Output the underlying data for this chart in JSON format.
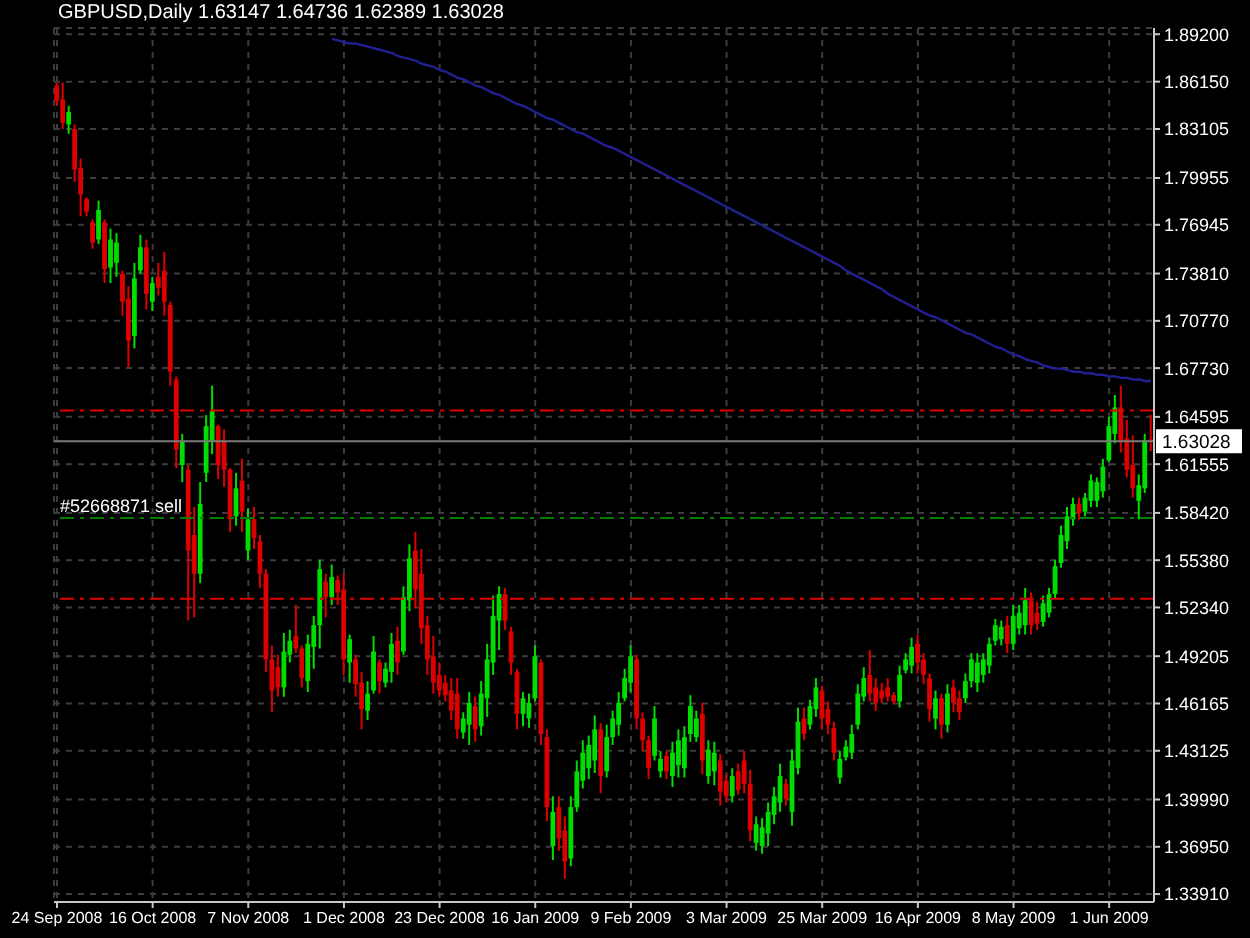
{
  "chart_data": {
    "type": "candlestick",
    "title": "GBPUSD,Daily 1.63147 1.64736 1.62389 1.63028",
    "categories": [
      "24 Sep 2008",
      null,
      null,
      null,
      null,
      null,
      null,
      null,
      null,
      null,
      null,
      null,
      null,
      null,
      null,
      null,
      "16 Oct 2008",
      null,
      null,
      null,
      null,
      null,
      null,
      null,
      null,
      null,
      null,
      null,
      null,
      null,
      null,
      null,
      "7 Nov 2008",
      null,
      null,
      null,
      null,
      null,
      null,
      null,
      null,
      null,
      null,
      null,
      null,
      null,
      null,
      null,
      "1 Dec 2008",
      null,
      null,
      null,
      null,
      null,
      null,
      null,
      null,
      null,
      null,
      null,
      null,
      null,
      null,
      null,
      "23 Dec 2008",
      null,
      null,
      null,
      null,
      null,
      null,
      null,
      null,
      null,
      null,
      null,
      null,
      null,
      null,
      null,
      "16 Jan 2009",
      null,
      null,
      null,
      null,
      null,
      null,
      null,
      null,
      null,
      null,
      null,
      null,
      null,
      null,
      null,
      "9 Feb 2009",
      null,
      null,
      null,
      null,
      null,
      null,
      null,
      null,
      null,
      null,
      null,
      null,
      null,
      null,
      null,
      "3 Mar 2009",
      null,
      null,
      null,
      null,
      null,
      null,
      null,
      null,
      null,
      null,
      null,
      null,
      null,
      null,
      null,
      "25 Mar 2009",
      null,
      null,
      null,
      null,
      null,
      null,
      null,
      null,
      null,
      null,
      null,
      null,
      null,
      null,
      null,
      "16 Apr 2009",
      null,
      null,
      null,
      null,
      null,
      null,
      null,
      null,
      null,
      null,
      null,
      null,
      null,
      null,
      null,
      "8 May 2009",
      null,
      null,
      null,
      null,
      null,
      null,
      null,
      null,
      null,
      null,
      null,
      null,
      null,
      null,
      null,
      "1 Jun 2009",
      null,
      null,
      null,
      null,
      null,
      null,
      null
    ],
    "ohlc": [
      [
        1.859,
        1.861,
        1.846,
        1.849
      ],
      [
        1.85,
        1.861,
        1.831,
        1.835
      ],
      [
        1.834,
        1.846,
        1.828,
        1.842
      ],
      [
        1.831,
        1.834,
        1.797,
        1.805
      ],
      [
        1.806,
        1.812,
        1.775,
        1.789
      ],
      [
        1.786,
        1.787,
        1.775,
        1.778
      ],
      [
        1.771,
        1.773,
        1.754,
        1.758
      ],
      [
        1.76,
        1.785,
        1.757,
        1.779
      ],
      [
        1.771,
        1.773,
        1.732,
        1.741
      ],
      [
        1.742,
        1.767,
        1.732,
        1.76
      ],
      [
        1.745,
        1.764,
        1.736,
        1.758
      ],
      [
        1.738,
        1.74,
        1.711,
        1.72
      ],
      [
        1.722,
        1.73,
        1.678,
        1.695
      ],
      [
        1.698,
        1.745,
        1.69,
        1.735
      ],
      [
        1.74,
        1.763,
        1.738,
        1.755
      ],
      [
        1.755,
        1.76,
        1.715,
        1.725
      ],
      [
        1.72,
        1.736,
        1.714,
        1.732
      ],
      [
        1.736,
        1.745,
        1.724,
        1.729
      ],
      [
        1.74,
        1.752,
        1.711,
        1.72
      ],
      [
        1.718,
        1.72,
        1.666,
        1.675
      ],
      [
        1.67,
        1.672,
        1.613,
        1.625
      ],
      [
        1.615,
        1.635,
        1.604,
        1.63
      ],
      [
        1.612,
        1.615,
        1.515,
        1.56
      ],
      [
        1.57,
        1.588,
        1.517,
        1.545
      ],
      [
        1.545,
        1.604,
        1.539,
        1.59
      ],
      [
        1.61,
        1.647,
        1.604,
        1.64
      ],
      [
        1.63,
        1.666,
        1.622,
        1.65
      ],
      [
        1.64,
        1.641,
        1.606,
        1.615
      ],
      [
        1.63,
        1.638,
        1.601,
        1.612
      ],
      [
        1.612,
        1.613,
        1.572,
        1.58
      ],
      [
        1.582,
        1.61,
        1.576,
        1.6
      ],
      [
        1.605,
        1.619,
        1.572,
        1.585
      ],
      [
        1.56,
        1.587,
        1.554,
        1.58
      ],
      [
        1.58,
        1.588,
        1.561,
        1.568
      ],
      [
        1.566,
        1.57,
        1.536,
        1.545
      ],
      [
        1.545,
        1.548,
        1.482,
        1.49
      ],
      [
        1.49,
        1.499,
        1.456,
        1.47
      ],
      [
        1.485,
        1.493,
        1.466,
        1.472
      ],
      [
        1.472,
        1.507,
        1.466,
        1.495
      ],
      [
        1.493,
        1.509,
        1.488,
        1.502
      ],
      [
        1.505,
        1.525,
        1.494,
        1.497
      ],
      [
        1.497,
        1.499,
        1.472,
        1.478
      ],
      [
        1.476,
        1.506,
        1.469,
        1.5
      ],
      [
        1.498,
        1.518,
        1.484,
        1.512
      ],
      [
        1.512,
        1.554,
        1.497,
        1.548
      ],
      [
        1.54,
        1.545,
        1.517,
        1.53
      ],
      [
        1.53,
        1.551,
        1.525,
        1.543
      ],
      [
        1.541,
        1.544,
        1.525,
        1.533
      ],
      [
        1.535,
        1.545,
        1.48,
        1.49
      ],
      [
        1.488,
        1.506,
        1.475,
        1.503
      ],
      [
        1.49,
        1.493,
        1.466,
        1.474
      ],
      [
        1.475,
        1.482,
        1.445,
        1.458
      ],
      [
        1.457,
        1.476,
        1.451,
        1.468
      ],
      [
        1.47,
        1.505,
        1.468,
        1.495
      ],
      [
        1.488,
        1.49,
        1.468,
        1.476
      ],
      [
        1.475,
        1.488,
        1.472,
        1.484
      ],
      [
        1.482,
        1.507,
        1.475,
        1.5
      ],
      [
        1.502,
        1.511,
        1.48,
        1.488
      ],
      [
        1.495,
        1.537,
        1.493,
        1.53
      ],
      [
        1.528,
        1.564,
        1.521,
        1.555
      ],
      [
        1.56,
        1.572,
        1.523,
        1.535
      ],
      [
        1.545,
        1.561,
        1.5,
        1.51
      ],
      [
        1.512,
        1.518,
        1.48,
        1.49
      ],
      [
        1.492,
        1.505,
        1.468,
        1.475
      ],
      [
        1.48,
        1.488,
        1.466,
        1.47
      ],
      [
        1.475,
        1.48,
        1.463,
        1.467
      ],
      [
        1.47,
        1.478,
        1.451,
        1.457
      ],
      [
        1.468,
        1.478,
        1.439,
        1.445
      ],
      [
        1.443,
        1.456,
        1.439,
        1.452
      ],
      [
        1.448,
        1.469,
        1.435,
        1.462
      ],
      [
        1.46,
        1.466,
        1.437,
        1.445
      ],
      [
        1.447,
        1.476,
        1.441,
        1.468
      ],
      [
        1.465,
        1.5,
        1.453,
        1.49
      ],
      [
        1.488,
        1.531,
        1.48,
        1.518
      ],
      [
        1.515,
        1.537,
        1.496,
        1.532
      ],
      [
        1.532,
        1.536,
        1.509,
        1.515
      ],
      [
        1.508,
        1.511,
        1.48,
        1.488
      ],
      [
        1.482,
        1.484,
        1.445,
        1.455
      ],
      [
        1.455,
        1.469,
        1.447,
        1.465
      ],
      [
        1.452,
        1.468,
        1.446,
        1.462
      ],
      [
        1.465,
        1.499,
        1.463,
        1.492
      ],
      [
        1.488,
        1.49,
        1.435,
        1.442
      ],
      [
        1.44,
        1.445,
        1.386,
        1.395
      ],
      [
        1.37,
        1.402,
        1.361,
        1.392
      ],
      [
        1.395,
        1.402,
        1.367,
        1.375
      ],
      [
        1.38,
        1.389,
        1.349,
        1.36
      ],
      [
        1.362,
        1.402,
        1.357,
        1.395
      ],
      [
        1.395,
        1.425,
        1.392,
        1.418
      ],
      [
        1.412,
        1.438,
        1.407,
        1.43
      ],
      [
        1.42,
        1.441,
        1.413,
        1.435
      ],
      [
        1.425,
        1.454,
        1.417,
        1.445
      ],
      [
        1.445,
        1.449,
        1.404,
        1.415
      ],
      [
        1.418,
        1.448,
        1.414,
        1.44
      ],
      [
        1.44,
        1.457,
        1.435,
        1.452
      ],
      [
        1.448,
        1.469,
        1.441,
        1.462
      ],
      [
        1.465,
        1.484,
        1.463,
        1.478
      ],
      [
        1.475,
        1.499,
        1.469,
        1.492
      ],
      [
        1.49,
        1.493,
        1.445,
        1.452
      ],
      [
        1.452,
        1.456,
        1.431,
        1.438
      ],
      [
        1.438,
        1.441,
        1.413,
        1.42
      ],
      [
        1.428,
        1.46,
        1.425,
        1.452
      ],
      [
        1.418,
        1.431,
        1.414,
        1.426
      ],
      [
        1.428,
        1.431,
        1.413,
        1.418
      ],
      [
        1.415,
        1.437,
        1.408,
        1.43
      ],
      [
        1.422,
        1.445,
        1.414,
        1.438
      ],
      [
        1.42,
        1.447,
        1.414,
        1.44
      ],
      [
        1.442,
        1.467,
        1.437,
        1.46
      ],
      [
        1.44,
        1.457,
        1.437,
        1.452
      ],
      [
        1.455,
        1.462,
        1.416,
        1.425
      ],
      [
        1.415,
        1.438,
        1.41,
        1.432
      ],
      [
        1.418,
        1.437,
        1.409,
        1.43
      ],
      [
        1.425,
        1.429,
        1.396,
        1.405
      ],
      [
        1.412,
        1.416,
        1.398,
        1.402
      ],
      [
        1.402,
        1.42,
        1.398,
        1.415
      ],
      [
        1.418,
        1.423,
        1.403,
        1.406
      ],
      [
        1.425,
        1.431,
        1.404,
        1.41
      ],
      [
        1.41,
        1.419,
        1.373,
        1.38
      ],
      [
        1.372,
        1.389,
        1.367,
        1.384
      ],
      [
        1.37,
        1.388,
        1.365,
        1.382
      ],
      [
        1.378,
        1.398,
        1.37,
        1.392
      ],
      [
        1.39,
        1.408,
        1.384,
        1.402
      ],
      [
        1.398,
        1.423,
        1.392,
        1.415
      ],
      [
        1.41,
        1.413,
        1.396,
        1.4
      ],
      [
        1.392,
        1.432,
        1.383,
        1.425
      ],
      [
        1.42,
        1.459,
        1.416,
        1.45
      ],
      [
        1.452,
        1.459,
        1.438,
        1.442
      ],
      [
        1.448,
        1.464,
        1.445,
        1.46
      ],
      [
        1.458,
        1.478,
        1.453,
        1.472
      ],
      [
        1.47,
        1.473,
        1.445,
        1.452
      ],
      [
        1.458,
        1.463,
        1.442,
        1.448
      ],
      [
        1.446,
        1.45,
        1.425,
        1.43
      ],
      [
        1.414,
        1.431,
        1.41,
        1.426
      ],
      [
        1.427,
        1.438,
        1.425,
        1.434
      ],
      [
        1.43,
        1.448,
        1.426,
        1.442
      ],
      [
        1.448,
        1.474,
        1.445,
        1.468
      ],
      [
        1.466,
        1.485,
        1.463,
        1.478
      ],
      [
        1.48,
        1.496,
        1.463,
        1.468
      ],
      [
        1.472,
        1.478,
        1.457,
        1.462
      ],
      [
        1.47,
        1.475,
        1.462,
        1.465
      ],
      [
        1.472,
        1.478,
        1.463,
        1.466
      ],
      [
        1.467,
        1.469,
        1.461,
        1.463
      ],
      [
        1.463,
        1.486,
        1.459,
        1.48
      ],
      [
        1.483,
        1.494,
        1.481,
        1.49
      ],
      [
        1.486,
        1.504,
        1.481,
        1.498
      ],
      [
        1.5,
        1.506,
        1.481,
        1.488
      ],
      [
        1.49,
        1.494,
        1.474,
        1.48
      ],
      [
        1.478,
        1.481,
        1.45,
        1.458
      ],
      [
        1.452,
        1.47,
        1.445,
        1.465
      ],
      [
        1.465,
        1.468,
        1.439,
        1.448
      ],
      [
        1.448,
        1.474,
        1.443,
        1.468
      ],
      [
        1.472,
        1.477,
        1.456,
        1.462
      ],
      [
        1.465,
        1.47,
        1.451,
        1.456
      ],
      [
        1.465,
        1.481,
        1.462,
        1.476
      ],
      [
        1.476,
        1.494,
        1.472,
        1.49
      ],
      [
        1.475,
        1.494,
        1.469,
        1.488
      ],
      [
        1.48,
        1.494,
        1.475,
        1.49
      ],
      [
        1.486,
        1.504,
        1.481,
        1.5
      ],
      [
        1.502,
        1.516,
        1.499,
        1.512
      ],
      [
        1.503,
        1.515,
        1.499,
        1.511
      ],
      [
        1.512,
        1.518,
        1.494,
        1.5
      ],
      [
        1.5,
        1.525,
        1.496,
        1.518
      ],
      [
        1.51,
        1.525,
        1.506,
        1.52
      ],
      [
        1.512,
        1.536,
        1.506,
        1.528
      ],
      [
        1.528,
        1.533,
        1.506,
        1.512
      ],
      [
        1.52,
        1.527,
        1.509,
        1.513
      ],
      [
        1.514,
        1.531,
        1.511,
        1.526
      ],
      [
        1.52,
        1.536,
        1.517,
        1.532
      ],
      [
        1.532,
        1.554,
        1.529,
        1.55
      ],
      [
        1.552,
        1.576,
        1.549,
        1.57
      ],
      [
        1.566,
        1.588,
        1.561,
        1.582
      ],
      [
        1.58,
        1.594,
        1.576,
        1.59
      ],
      [
        1.59,
        1.594,
        1.58,
        1.584
      ],
      [
        1.585,
        1.597,
        1.582,
        1.594
      ],
      [
        1.592,
        1.609,
        1.588,
        1.605
      ],
      [
        1.592,
        1.607,
        1.588,
        1.604
      ],
      [
        1.598,
        1.619,
        1.594,
        1.614
      ],
      [
        1.618,
        1.646,
        1.617,
        1.64
      ],
      [
        1.635,
        1.66,
        1.629,
        1.652
      ],
      [
        1.652,
        1.666,
        1.623,
        1.63
      ],
      [
        1.632,
        1.644,
        1.607,
        1.612
      ],
      [
        1.615,
        1.634,
        1.594,
        1.6
      ],
      [
        1.592,
        1.609,
        1.58,
        1.602
      ],
      [
        1.6,
        1.635,
        1.597,
        1.631
      ],
      [
        1.63147,
        1.64736,
        1.62389,
        1.63028
      ]
    ],
    "colors": [
      "#dd0000",
      "#dd0000",
      "#00dd00",
      "#dd0000",
      "#dd0000",
      "#dd0000",
      "#dd0000",
      "#00dd00",
      "#dd0000",
      "#00dd00",
      "#00dd00",
      "#dd0000",
      "#dd0000",
      "#00dd00",
      "#00dd00",
      "#dd0000",
      "#00dd00",
      "#dd0000",
      "#dd0000",
      "#dd0000",
      "#dd0000",
      "#00dd00",
      "#dd0000",
      "#dd0000",
      "#00dd00",
      "#00dd00",
      "#00dd00",
      "#dd0000",
      "#dd0000",
      "#dd0000",
      "#00dd00",
      "#dd0000",
      "#00dd00",
      "#dd0000",
      "#dd0000",
      "#dd0000",
      "#dd0000",
      "#dd0000",
      "#00dd00",
      "#00dd00",
      "#dd0000",
      "#dd0000",
      "#00dd00",
      "#00dd00",
      "#00dd00",
      "#dd0000",
      "#00dd00",
      "#dd0000",
      "#dd0000",
      "#00dd00",
      "#dd0000",
      "#dd0000",
      "#00dd00",
      "#00dd00",
      "#dd0000",
      "#00dd00",
      "#00dd00",
      "#dd0000",
      "#00dd00",
      "#00dd00",
      "#dd0000",
      "#dd0000",
      "#dd0000",
      "#dd0000",
      "#dd0000",
      "#dd0000",
      "#dd0000",
      "#dd0000",
      "#00dd00",
      "#00dd00",
      "#dd0000",
      "#00dd00",
      "#00dd00",
      "#00dd00",
      "#00dd00",
      "#dd0000",
      "#dd0000",
      "#dd0000",
      "#00dd00",
      "#00dd00",
      "#00dd00",
      "#dd0000",
      "#dd0000",
      "#00dd00",
      "#dd0000",
      "#dd0000",
      "#00dd00",
      "#00dd00",
      "#00dd00",
      "#00dd00",
      "#00dd00",
      "#dd0000",
      "#00dd00",
      "#00dd00",
      "#00dd00",
      "#00dd00",
      "#00dd00",
      "#dd0000",
      "#dd0000",
      "#dd0000",
      "#00dd00",
      "#00dd00",
      "#dd0000",
      "#00dd00",
      "#00dd00",
      "#00dd00",
      "#00dd00",
      "#00dd00",
      "#dd0000",
      "#00dd00",
      "#00dd00",
      "#dd0000",
      "#dd0000",
      "#00dd00",
      "#dd0000",
      "#dd0000",
      "#dd0000",
      "#00dd00",
      "#00dd00",
      "#00dd00",
      "#00dd00",
      "#00dd00",
      "#dd0000",
      "#00dd00",
      "#00dd00",
      "#dd0000",
      "#00dd00",
      "#00dd00",
      "#dd0000",
      "#dd0000",
      "#dd0000",
      "#00dd00",
      "#00dd00",
      "#00dd00",
      "#00dd00",
      "#00dd00",
      "#dd0000",
      "#dd0000",
      "#dd0000",
      "#dd0000",
      "#dd0000",
      "#00dd00",
      "#00dd00",
      "#00dd00",
      "#dd0000",
      "#dd0000",
      "#dd0000",
      "#00dd00",
      "#dd0000",
      "#00dd00",
      "#dd0000",
      "#dd0000",
      "#00dd00",
      "#00dd00",
      "#00dd00",
      "#00dd00",
      "#00dd00",
      "#00dd00",
      "#00dd00",
      "#dd0000",
      "#00dd00",
      "#00dd00",
      "#00dd00",
      "#dd0000",
      "#dd0000",
      "#00dd00",
      "#00dd00",
      "#00dd00",
      "#00dd00",
      "#00dd00",
      "#00dd00",
      "#dd0000",
      "#00dd00",
      "#00dd00",
      "#00dd00",
      "#00dd00",
      "#00dd00",
      "#00dd00",
      "#dd0000",
      "#dd0000",
      "#dd0000",
      "#00dd00",
      "#00dd00",
      "#dd0000"
    ],
    "series": [
      {
        "type": "line",
        "color": "#202090",
        "values": [
          null,
          null,
          null,
          null,
          null,
          null,
          null,
          null,
          null,
          null,
          null,
          null,
          null,
          null,
          null,
          null,
          null,
          null,
          null,
          null,
          null,
          null,
          null,
          null,
          null,
          null,
          null,
          null,
          null,
          null,
          null,
          null,
          null,
          null,
          null,
          null,
          null,
          null,
          null,
          null,
          null,
          null,
          null,
          null,
          null,
          null,
          1.889,
          1.888,
          1.887,
          1.886,
          1.886,
          1.885,
          1.884,
          1.883,
          1.882,
          1.881,
          1.88,
          1.878,
          1.877,
          1.876,
          1.875,
          1.873,
          1.872,
          1.871,
          1.869,
          1.868,
          1.866,
          1.864,
          1.863,
          1.861,
          1.859,
          1.858,
          1.856,
          1.854,
          1.853,
          1.851,
          1.849,
          1.847,
          1.846,
          1.844,
          1.842,
          1.84,
          1.838,
          1.837,
          1.835,
          1.833,
          1.831,
          1.829,
          1.828,
          1.826,
          1.824,
          1.822,
          1.82,
          1.819,
          1.817,
          1.815,
          1.813,
          1.811,
          1.809,
          1.807,
          1.805,
          1.803,
          1.801,
          1.799,
          1.797,
          1.795,
          1.793,
          1.791,
          1.789,
          1.787,
          1.785,
          1.783,
          1.781,
          1.779,
          1.777,
          1.775,
          1.773,
          1.771,
          1.769,
          1.767,
          1.765,
          1.763,
          1.761,
          1.759,
          1.757,
          1.755,
          1.753,
          1.751,
          1.749,
          1.747,
          1.745,
          1.743,
          1.74,
          1.738,
          1.736,
          1.734,
          1.732,
          1.73,
          1.728,
          1.725,
          1.723,
          1.721,
          1.719,
          1.717,
          1.715,
          1.713,
          1.711,
          1.71,
          1.708,
          1.706,
          1.704,
          1.702,
          1.7,
          1.699,
          1.697,
          1.695,
          1.693,
          1.691,
          1.69,
          1.688,
          1.686,
          1.685,
          1.683,
          1.682,
          1.681,
          1.679,
          1.678,
          1.677,
          1.677,
          1.676,
          1.675,
          1.675,
          1.674,
          1.674,
          1.673,
          1.673,
          1.672,
          1.672,
          1.671,
          1.671,
          1.67,
          1.67,
          1.669,
          1.669
        ]
      }
    ],
    "ylim": [
      1.334,
      1.896
    ],
    "yticks": [
      {
        "value": 1.3391,
        "label": "1.33910"
      },
      {
        "value": 1.3695,
        "label": "1.36950"
      },
      {
        "value": 1.3999,
        "label": "1.39990"
      },
      1.43125,
      1.46165,
      1.49205,
      {
        "value": 1.5234,
        "label": "1.52340"
      },
      {
        "value": 1.5538,
        "label": "1.55380"
      },
      {
        "value": 1.5842,
        "label": "1.58420"
      },
      1.61555,
      1.64595,
      {
        "value": 1.6773,
        "label": "1.67730"
      },
      {
        "value": 1.7077,
        "label": "1.70770"
      },
      {
        "value": 1.7381,
        "label": "1.73810"
      },
      1.76945,
      1.79955,
      1.83105,
      {
        "value": 1.8615,
        "label": "1.86150"
      },
      {
        "value": 1.892,
        "label": "1.89200"
      }
    ],
    "grid": true,
    "ref_lines": [
      {
        "axis": "y",
        "value": 1.65,
        "color": "#e00000",
        "line_style": "dashed"
      },
      {
        "axis": "y",
        "value": 1.581,
        "label": "#52668871 sell",
        "color": "#008000",
        "line_style": "dashed"
      },
      {
        "axis": "y",
        "value": 1.529,
        "color": "#e00000",
        "line_style": "dashed"
      },
      {
        "axis": "y",
        "value": 1.63028,
        "label": "1.63028",
        "color": "#7a7a7a",
        "line_style": "solid"
      }
    ]
  }
}
